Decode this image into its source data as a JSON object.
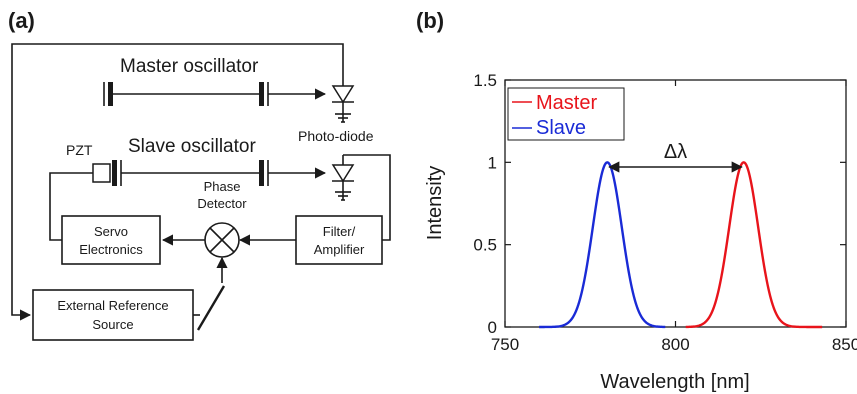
{
  "panel_a": {
    "label": "(a)",
    "master_oscillator": "Master oscillator",
    "slave_oscillator": "Slave oscillator",
    "pzt": "PZT",
    "photo_diode": "Photo-diode",
    "phase_detector_line1": "Phase",
    "phase_detector_line2": "Detector",
    "servo_line1": "Servo",
    "servo_line2": "Electronics",
    "filter_line1": "Filter/",
    "filter_line2": "Amplifier",
    "ext_ref_line1": "External Reference",
    "ext_ref_line2": "Source"
  },
  "panel_b": {
    "label": "(b)",
    "delta_label": "Δλ"
  },
  "chart_data": {
    "type": "line",
    "xlabel": "Wavelength [nm]",
    "ylabel": "Intensity",
    "xlim": [
      750,
      850
    ],
    "ylim": [
      0,
      1.5
    ],
    "x_ticks": [
      750,
      800,
      850
    ],
    "y_ticks": [
      0,
      0.5,
      1,
      1.5
    ],
    "y_tick_labels": [
      "0",
      "0.5",
      "1",
      "1.5"
    ],
    "grid": false,
    "legend_position": "top-left",
    "series": [
      {
        "name": "Master",
        "color": "#e8141b",
        "center": 820,
        "fwhm": 10,
        "x_start": 803,
        "x_end": 843,
        "peak": 1.0
      },
      {
        "name": "Slave",
        "color": "#1a2bd6",
        "center": 780,
        "fwhm": 10,
        "x_start": 760,
        "x_end": 797,
        "peak": 1.0
      }
    ]
  }
}
